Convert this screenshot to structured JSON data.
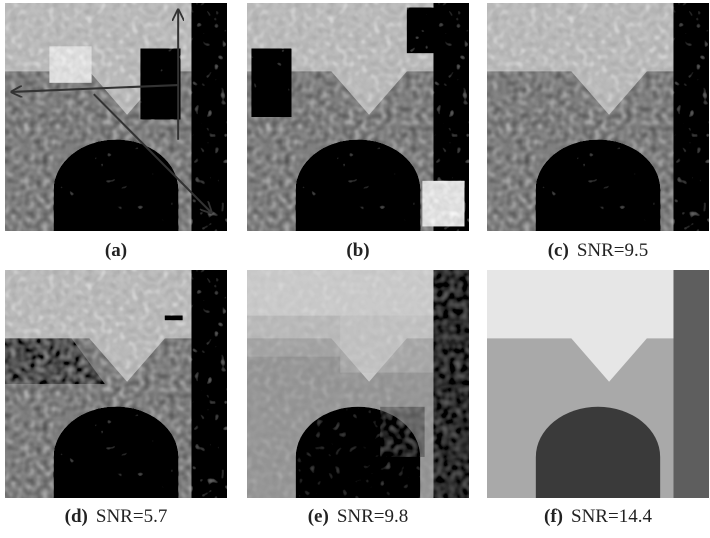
{
  "figure": {
    "panels": [
      {
        "tag": "(a)"
      },
      {
        "tag": "(b)"
      },
      {
        "tag": "(c)",
        "caption": "SNR=9.5"
      },
      {
        "tag": "(d)",
        "caption": "SNR=5.7"
      },
      {
        "tag": "(e)",
        "caption": "SNR=9.8"
      },
      {
        "tag": "(f)",
        "caption": "SNR=14.4"
      }
    ]
  }
}
